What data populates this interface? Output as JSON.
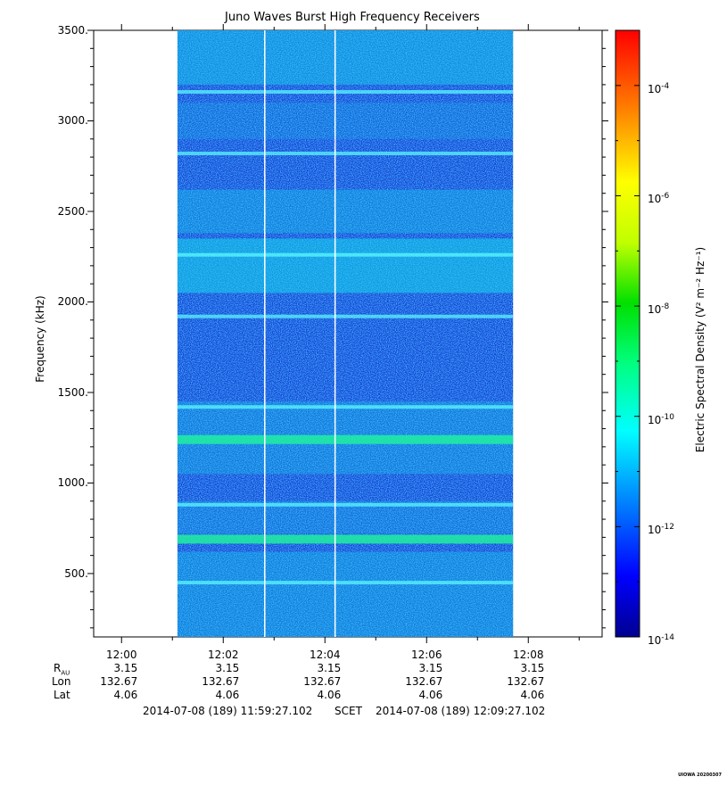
{
  "chart_data": {
    "type": "heatmap",
    "title": "Juno Waves Burst High Frequency Receivers",
    "ylabel": "Frequency (kHz)",
    "colorbar_label": "Electric Spectral Density (V² m⁻² Hz⁻¹)",
    "ylim": [
      150,
      3500
    ],
    "y_ticks": [
      500,
      1000,
      1500,
      2000,
      2500,
      3000,
      3500
    ],
    "y_tick_labels": [
      "500.",
      "1000.",
      "1500.",
      "2000.",
      "2500.",
      "3000.",
      "3500."
    ],
    "x_range_minutes": [
      "11:59:27.102",
      "12:09:27.102"
    ],
    "x_ticks": [
      "12:00",
      "12:02",
      "12:04",
      "12:06",
      "12:08"
    ],
    "data_time_span": [
      "12:01:06",
      "12:07:42"
    ],
    "data_gaps": [
      "12:02:49",
      "12:04:12"
    ],
    "colorbar": {
      "scale": "log",
      "range_exponents": [
        -14,
        -3
      ],
      "tick_exponents": [
        -14,
        -12,
        -10,
        -8,
        -6,
        -4
      ],
      "tick_labels": [
        "10-14",
        "10-12",
        "10-10",
        "10-8",
        "10-6",
        "10-4"
      ]
    },
    "emission_bands_khz": [
      3160,
      2820,
      2260,
      1920,
      1420,
      1240,
      880,
      690,
      450
    ],
    "colors": {
      "background_low": "#1a3fd6",
      "mid": "#00e6e6",
      "band_peak": "#20f0a0"
    }
  },
  "ephemeris": {
    "labels": {
      "r": "R",
      "r_sub": "AU",
      "lon": "Lon",
      "lat": "Lat"
    },
    "columns": [
      {
        "r": "3.15",
        "lon": "132.67",
        "lat": "4.06"
      },
      {
        "r": "3.15",
        "lon": "132.67",
        "lat": "4.06"
      },
      {
        "r": "3.15",
        "lon": "132.67",
        "lat": "4.06"
      },
      {
        "r": "3.15",
        "lon": "132.67",
        "lat": "4.06"
      },
      {
        "r": "3.15",
        "lon": "132.67",
        "lat": "4.06"
      }
    ]
  },
  "time_range": {
    "start": "2014-07-08 (189) 11:59:27.102",
    "label": "SCET",
    "end": "2014-07-08 (189) 12:09:27.102"
  },
  "footer_stamp": "UIOWA 20200307"
}
